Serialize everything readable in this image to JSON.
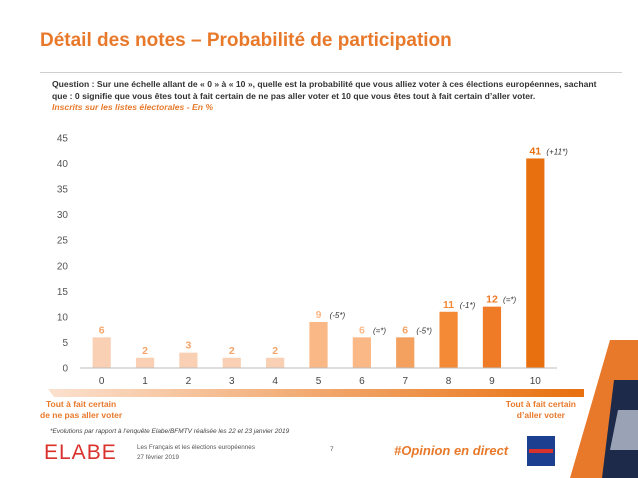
{
  "header": {
    "title": "Détail des notes – Probabilité de participation",
    "question": "Question : Sur une échelle allant de « 0 » à « 10 », quelle est la probabilité que vous alliez voter à ces élections européennes, sachant que : 0 signifie que vous êtes tout à fait certain de ne pas aller voter et 10 que vous êtes tout à fait certain d’aller voter.",
    "subquestion": "Inscrits sur les listes électorales - En %"
  },
  "scale": {
    "left_line1": "Tout à fait certain",
    "left_line2": "de ne pas aller voter",
    "right_line1": "Tout à fait certain",
    "right_line2": "d’aller voter"
  },
  "chart_data": {
    "type": "bar",
    "categories": [
      "0",
      "1",
      "2",
      "3",
      "4",
      "5",
      "6",
      "7",
      "8",
      "9",
      "10"
    ],
    "values": [
      6,
      2,
      3,
      2,
      2,
      9,
      6,
      6,
      11,
      12,
      41
    ],
    "evolutions": [
      "",
      "",
      "",
      "",
      "",
      "(-5*)",
      "(=*)",
      "(-5*)",
      "(-1*)",
      "(=*)",
      "(+11*)"
    ],
    "colors": [
      "#f9d0b4",
      "#f9d0b4",
      "#f9d0b4",
      "#f9d0b4",
      "#f9d0b4",
      "#fbb887",
      "#fbb887",
      "#f4a160",
      "#f48a36",
      "#ef7b26",
      "#e8700f"
    ],
    "yticks": [
      0,
      5,
      10,
      15,
      20,
      25,
      30,
      35,
      40,
      45
    ],
    "ylim": [
      0,
      45
    ],
    "grid": false
  },
  "footer": {
    "footnote": "*Evolutions par rapport à l’enquête Elabe/BFMTV réalisée les 22 et 23 janvier 2019",
    "logo": "ELABE",
    "survey_title": "Les Français et les élections européennes",
    "date": "27 février 2019",
    "page_number": "7",
    "hashtag": "#Opinion en direct",
    "partner_logo_text": "BFM TV"
  }
}
